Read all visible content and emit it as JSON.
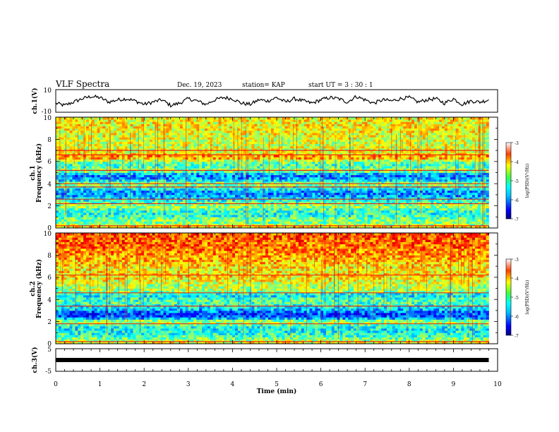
{
  "header": {
    "title": "VLF Spectra",
    "date": "Dec. 19, 2023",
    "station": "station= KAP",
    "start": "start UT = 3 : 30 : 1"
  },
  "panels": {
    "ch1_wave_label": "ch.1(V)",
    "ch1_spec_label": "ch.1",
    "ch2_spec_label": "ch.2",
    "ch3_label": "ch.3(V)",
    "freq_label": "Frequency (kHz)",
    "time_label": "Time (min)",
    "colorbar_label": "log(PSD)(V²/Hz)"
  },
  "colors": {
    "jet": [
      "#000080",
      "#0000ff",
      "#0080ff",
      "#00ffff",
      "#80ff80",
      "#ffff00",
      "#ff8000",
      "#ff0000",
      "#800000"
    ],
    "frame": "#000000",
    "trace": "#000000"
  },
  "chart_data": [
    {
      "type": "line",
      "name": "ch.1 waveform",
      "ylabel": "ch.1(V)",
      "xlim": [
        0,
        10
      ],
      "ylim": [
        -10,
        10
      ],
      "yticks": [
        "10",
        "-10"
      ],
      "trace_extent_min": [
        0,
        9.8
      ],
      "x": [
        0.0,
        0.2,
        0.4,
        0.6,
        0.8,
        1.0,
        1.2,
        1.4,
        1.6,
        1.8,
        2.0,
        2.2,
        2.4,
        2.6,
        2.8,
        3.0,
        3.2,
        3.4,
        3.6,
        3.8,
        4.0,
        4.2,
        4.4,
        4.6,
        4.8,
        5.0,
        5.2,
        5.4,
        5.6,
        5.8,
        6.0,
        6.2,
        6.4,
        6.6,
        6.8,
        7.0,
        7.2,
        7.4,
        7.6,
        7.8,
        8.0,
        8.2,
        8.4,
        8.6,
        8.8,
        9.0,
        9.2,
        9.4,
        9.6,
        9.8
      ],
      "y": [
        -2,
        -4,
        -1,
        2,
        4,
        3,
        -1,
        1,
        2,
        0,
        -3,
        -1,
        1,
        -4,
        -2,
        2,
        0,
        -3,
        1,
        3,
        2,
        -2,
        -3,
        1,
        0,
        3,
        -1,
        2,
        0,
        -2,
        1,
        3,
        2,
        -1,
        4,
        1,
        -2,
        1,
        0,
        2,
        3,
        -1,
        1,
        2,
        -2,
        2,
        -3,
        0,
        -1,
        1
      ]
    },
    {
      "type": "heatmap",
      "name": "ch.1 spectrogram",
      "ylabel": "ch.1 Frequency (kHz)",
      "xlim": [
        0,
        10
      ],
      "ylim": [
        0,
        10
      ],
      "xticks": [
        "0",
        "1",
        "2",
        "3",
        "4",
        "5",
        "6",
        "7",
        "8",
        "9",
        "10"
      ],
      "yticks": [
        "0",
        "2",
        "4",
        "6",
        "8",
        "10"
      ],
      "colorbar": {
        "label": "log(PSD)(V²/Hz)",
        "min": -7,
        "max": -3,
        "ticks": [
          "-3",
          "-4",
          "-5",
          "-6",
          "-7"
        ]
      },
      "data_extent_min": [
        0,
        9.8
      ],
      "band_freqs_khz": [
        0.0,
        0.4,
        0.8,
        1.2,
        1.6,
        2.0,
        2.4,
        2.8,
        3.2,
        3.6,
        4.0,
        4.4,
        4.8,
        5.2,
        5.6,
        6.0,
        6.4,
        6.8,
        7.2,
        7.6,
        8.0,
        8.4,
        8.8,
        9.2,
        9.6,
        10.0
      ],
      "band_log_psd": [
        -4.2,
        -5.0,
        -5.0,
        -5.4,
        -5.3,
        -4.8,
        -5.3,
        -5.8,
        -6.0,
        -5.4,
        -4.9,
        -5.8,
        -6.0,
        -4.8,
        -5.3,
        -5.0,
        -4.0,
        -4.6,
        -4.6,
        -4.7,
        -4.6,
        -4.6,
        -4.5,
        -4.5,
        -4.5,
        -4.5
      ],
      "lines_khz": [
        0.2,
        2.2,
        2.6,
        3.7,
        4.0,
        5.2,
        6.6,
        7.0
      ]
    },
    {
      "type": "heatmap",
      "name": "ch.2 spectrogram",
      "ylabel": "ch.2 Frequency (kHz)",
      "xlim": [
        0,
        10
      ],
      "ylim": [
        0,
        10
      ],
      "xticks": [
        "0",
        "1",
        "2",
        "3",
        "4",
        "5",
        "6",
        "7",
        "8",
        "9",
        "10"
      ],
      "yticks": [
        "0",
        "2",
        "4",
        "6",
        "8",
        "10"
      ],
      "colorbar": {
        "label": "log(PSD)(V²/Hz)",
        "min": -7,
        "max": -3,
        "ticks": [
          "-3",
          "-4",
          "-5",
          "-6",
          "-7"
        ]
      },
      "data_extent_min": [
        0,
        9.8
      ],
      "band_freqs_khz": [
        0.0,
        0.4,
        0.8,
        1.2,
        1.6,
        2.0,
        2.4,
        2.8,
        3.2,
        3.6,
        4.0,
        4.4,
        4.8,
        5.2,
        5.6,
        6.0,
        6.4,
        6.8,
        7.2,
        7.6,
        8.0,
        8.4,
        8.8,
        9.2,
        9.6,
        10.0
      ],
      "band_log_psd": [
        -4.4,
        -5.0,
        -5.3,
        -5.5,
        -5.4,
        -4.6,
        -6.2,
        -6.2,
        -5.6,
        -5.2,
        -5.2,
        -5.6,
        -4.8,
        -4.8,
        -4.6,
        -4.4,
        -4.4,
        -4.5,
        -4.3,
        -4.2,
        -4.1,
        -4.0,
        -3.9,
        -3.9,
        -3.8,
        -3.8
      ],
      "lines_khz": [
        0.2,
        1.8,
        3.4,
        4.6,
        6.2
      ]
    },
    {
      "type": "line",
      "name": "ch.3 waveform",
      "ylabel": "ch.3(V)",
      "xlabel": "Time (min)",
      "xlim": [
        0,
        10
      ],
      "ylim": [
        -5,
        5
      ],
      "xticks": [
        "0",
        "1",
        "2",
        "3",
        "4",
        "5",
        "6",
        "7",
        "8",
        "9",
        "10"
      ],
      "yticks": [
        "5",
        "-5"
      ],
      "x": [
        0.0,
        9.8
      ],
      "y": [
        0.0,
        0.0
      ]
    }
  ]
}
